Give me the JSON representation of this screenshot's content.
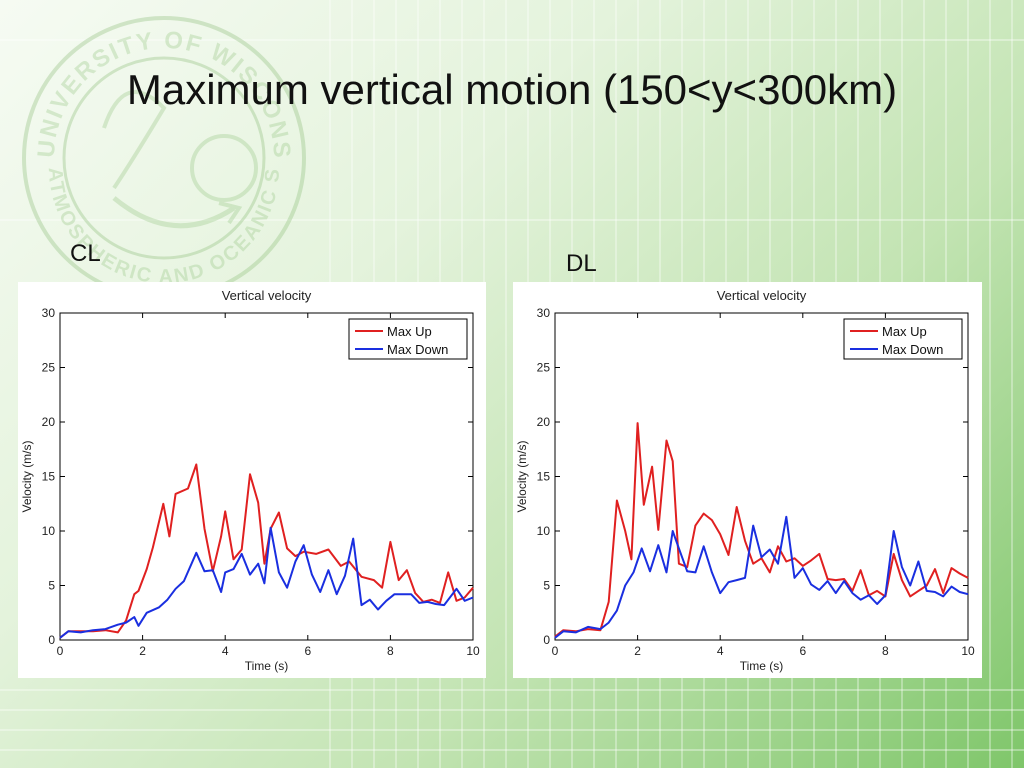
{
  "slide": {
    "title": "Maximum vertical motion (150<y<300km)",
    "labels": {
      "left": "CL",
      "right": "DL"
    },
    "seal": {
      "top": "UNIVERSITY OF WISCONSIN - MADISON",
      "bottom": "ATMOSPHERIC AND OCEANIC SCIENCES"
    }
  },
  "chart_data": [
    {
      "type": "line",
      "panel": "CL",
      "title": "Vertical velocity",
      "xlabel": "Time (s)",
      "ylabel": "Velocity (m/s)",
      "xlim": [
        0,
        10
      ],
      "ylim": [
        0,
        30
      ],
      "xticks": [
        0,
        2,
        4,
        6,
        8,
        10
      ],
      "yticks": [
        0,
        5,
        10,
        15,
        20,
        25,
        30
      ],
      "grid": false,
      "legend_position": "top-right",
      "series": [
        {
          "name": "Max Up",
          "color": "#e02020",
          "x": [
            0,
            0.2,
            0.5,
            0.8,
            1.1,
            1.4,
            1.6,
            1.8,
            1.9,
            2.1,
            2.25,
            2.5,
            2.65,
            2.8,
            3.1,
            3.3,
            3.5,
            3.7,
            3.9,
            4.0,
            4.2,
            4.4,
            4.6,
            4.8,
            4.95,
            5.1,
            5.3,
            5.5,
            5.7,
            5.9,
            6.2,
            6.5,
            6.8,
            7.0,
            7.3,
            7.6,
            7.8,
            8.0,
            8.2,
            8.4,
            8.6,
            8.8,
            9.0,
            9.2,
            9.4,
            9.6,
            9.8,
            10.0
          ],
          "values": [
            0.2,
            0.8,
            0.8,
            0.8,
            0.9,
            0.7,
            1.8,
            4.2,
            4.5,
            6.5,
            8.5,
            12.5,
            9.5,
            13.4,
            13.9,
            16.1,
            10.2,
            6.3,
            9.5,
            11.8,
            7.4,
            8.3,
            15.2,
            12.6,
            7.0,
            10.2,
            11.7,
            8.4,
            7.7,
            8.1,
            7.9,
            8.3,
            6.8,
            7.2,
            5.8,
            5.5,
            4.8,
            9.0,
            5.5,
            6.4,
            4.3,
            3.5,
            3.7,
            3.4,
            6.2,
            3.6,
            3.9,
            4.8
          ]
        },
        {
          "name": "Max Down",
          "color": "#1a2fe0",
          "x": [
            0,
            0.2,
            0.5,
            0.8,
            1.1,
            1.4,
            1.6,
            1.8,
            1.9,
            2.1,
            2.4,
            2.6,
            2.8,
            3.0,
            3.3,
            3.5,
            3.7,
            3.9,
            4.0,
            4.2,
            4.4,
            4.6,
            4.8,
            4.95,
            5.1,
            5.3,
            5.5,
            5.7,
            5.9,
            6.1,
            6.3,
            6.5,
            6.7,
            6.9,
            7.1,
            7.3,
            7.5,
            7.7,
            7.9,
            8.1,
            8.3,
            8.5,
            8.7,
            8.9,
            9.1,
            9.3,
            9.6,
            9.8,
            10.0
          ],
          "values": [
            0.2,
            0.8,
            0.7,
            0.9,
            1.0,
            1.4,
            1.6,
            2.1,
            1.3,
            2.5,
            3.0,
            3.7,
            4.7,
            5.4,
            8.0,
            6.3,
            6.4,
            4.4,
            6.2,
            6.5,
            7.9,
            6.0,
            7.0,
            5.2,
            10.3,
            6.2,
            4.8,
            7.2,
            8.7,
            6.0,
            4.4,
            6.4,
            4.2,
            5.9,
            9.3,
            3.2,
            3.7,
            2.8,
            3.6,
            4.2,
            4.2,
            4.2,
            3.4,
            3.5,
            3.3,
            3.2,
            4.7,
            3.6,
            3.9
          ]
        }
      ]
    },
    {
      "type": "line",
      "panel": "DL",
      "title": "Vertical velocity",
      "xlabel": "Time (s)",
      "ylabel": "Velocity (m/s)",
      "xlim": [
        0,
        10
      ],
      "ylim": [
        0,
        30
      ],
      "xticks": [
        0,
        2,
        4,
        6,
        8,
        10
      ],
      "yticks": [
        0,
        5,
        10,
        15,
        20,
        25,
        30
      ],
      "grid": false,
      "legend_position": "top-right",
      "series": [
        {
          "name": "Max Up",
          "color": "#e02020",
          "x": [
            0,
            0.2,
            0.5,
            0.8,
            1.1,
            1.3,
            1.5,
            1.7,
            1.85,
            2.0,
            2.15,
            2.35,
            2.5,
            2.7,
            2.85,
            3.0,
            3.2,
            3.4,
            3.6,
            3.8,
            4.0,
            4.2,
            4.4,
            4.6,
            4.8,
            5.0,
            5.2,
            5.4,
            5.6,
            5.8,
            6.0,
            6.2,
            6.4,
            6.6,
            6.8,
            7.0,
            7.2,
            7.4,
            7.6,
            7.8,
            8.0,
            8.2,
            8.4,
            8.6,
            8.8,
            9.0,
            9.2,
            9.4,
            9.6,
            9.8,
            10.0
          ],
          "values": [
            0.3,
            0.9,
            0.8,
            1.0,
            0.9,
            3.5,
            12.8,
            10.0,
            7.4,
            19.9,
            12.4,
            15.9,
            10.1,
            18.3,
            16.4,
            7.0,
            6.7,
            10.5,
            11.6,
            11.0,
            9.7,
            7.8,
            12.2,
            9.1,
            7.0,
            7.5,
            6.2,
            8.6,
            7.2,
            7.5,
            6.8,
            7.3,
            7.9,
            5.6,
            5.5,
            5.6,
            4.5,
            6.4,
            4.1,
            4.5,
            4.0,
            7.9,
            5.5,
            4.0,
            4.5,
            5.0,
            6.5,
            4.3,
            6.6,
            6.1,
            5.7
          ]
        },
        {
          "name": "Max Down",
          "color": "#1a2fe0",
          "x": [
            0,
            0.2,
            0.5,
            0.8,
            1.1,
            1.3,
            1.5,
            1.7,
            1.9,
            2.1,
            2.3,
            2.5,
            2.7,
            2.85,
            3.0,
            3.2,
            3.4,
            3.6,
            3.8,
            4.0,
            4.2,
            4.4,
            4.6,
            4.8,
            5.0,
            5.2,
            5.4,
            5.6,
            5.8,
            6.0,
            6.2,
            6.4,
            6.6,
            6.8,
            7.0,
            7.2,
            7.4,
            7.6,
            7.8,
            8.0,
            8.2,
            8.4,
            8.6,
            8.8,
            9.0,
            9.2,
            9.4,
            9.6,
            9.8,
            10.0
          ],
          "values": [
            0.2,
            0.8,
            0.7,
            1.2,
            1.0,
            1.6,
            2.7,
            5.0,
            6.2,
            8.4,
            6.3,
            8.7,
            6.2,
            10.0,
            8.4,
            6.3,
            6.2,
            8.6,
            6.2,
            4.3,
            5.3,
            5.5,
            5.7,
            10.5,
            7.6,
            8.3,
            7.0,
            11.3,
            5.7,
            6.6,
            5.1,
            4.6,
            5.4,
            4.3,
            5.4,
            4.3,
            3.7,
            4.1,
            3.3,
            4.1,
            10.0,
            6.7,
            5.0,
            7.2,
            4.5,
            4.4,
            4.0,
            4.9,
            4.4,
            4.2
          ]
        }
      ]
    }
  ]
}
